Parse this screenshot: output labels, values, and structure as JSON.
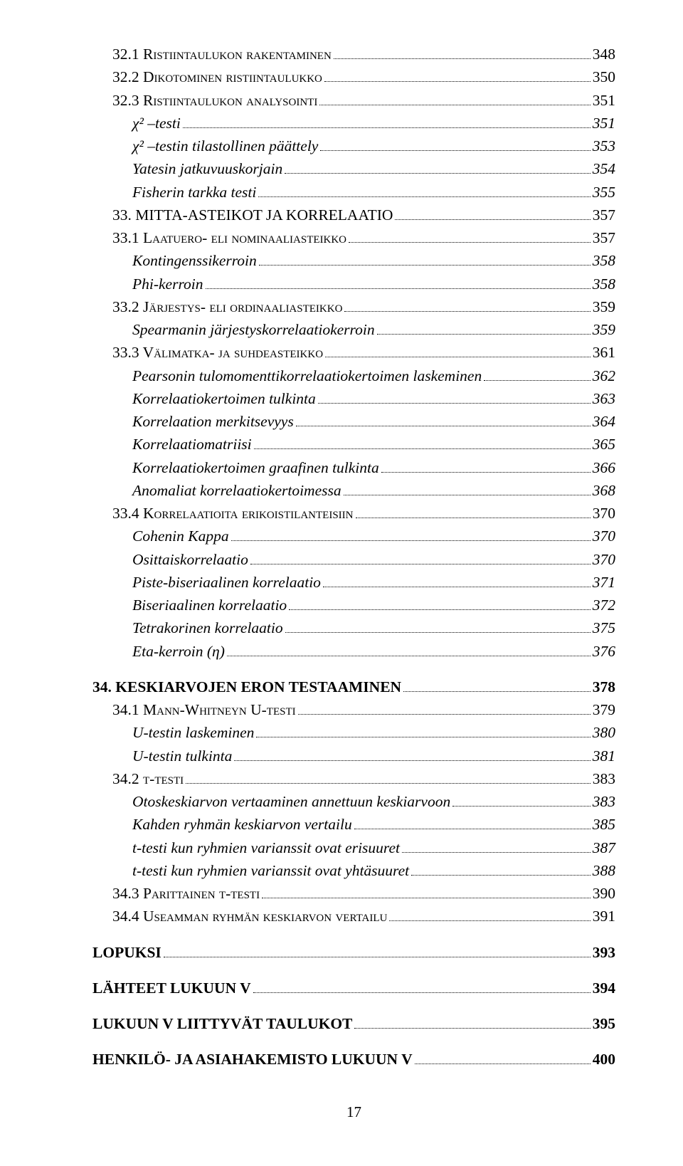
{
  "page_number": "17",
  "colors": {
    "text": "#000000",
    "background": "#ffffff",
    "leader": "#000000"
  },
  "fonts": {
    "family": "Times New Roman",
    "base_size_pt": 16,
    "heading_weight": "bold",
    "level2_style": "italic",
    "smallcaps_level1": true
  },
  "entries": [
    {
      "level": 1,
      "label": "32.1 Ristiintaulukon rakentaminen",
      "page": "348",
      "smallcaps": true
    },
    {
      "level": 1,
      "label": "32.2 Dikotominen ristiintaulukko",
      "page": "350",
      "smallcaps": true
    },
    {
      "level": 1,
      "label": "32.3 Ristiintaulukon analysointi",
      "page": "351",
      "smallcaps": true
    },
    {
      "level": 2,
      "label": "χ² –testi",
      "page": "351"
    },
    {
      "level": 2,
      "label": "χ² –testin tilastollinen päättely",
      "page": "353"
    },
    {
      "level": 2,
      "label": "Yatesin jatkuvuuskorjain",
      "page": "354"
    },
    {
      "level": 2,
      "label": "Fisherin tarkka testi",
      "page": "355"
    },
    {
      "level": 1,
      "label": "33. MITTA-ASTEIKOT JA KORRELAATIO",
      "page": "357"
    },
    {
      "level": 1,
      "label": "33.1 Laatuero- eli nominaaliasteikko",
      "page": "357",
      "smallcaps": true
    },
    {
      "level": 2,
      "label": "Kontingenssikerroin",
      "page": "358"
    },
    {
      "level": 2,
      "label": "Phi-kerroin",
      "page": "358"
    },
    {
      "level": 1,
      "label": "33.2 Järjestys- eli ordinaaliasteikko",
      "page": "359",
      "smallcaps": true
    },
    {
      "level": 2,
      "label": "Spearmanin järjestyskorrelaatiokerroin",
      "page": "359"
    },
    {
      "level": 1,
      "label": "33.3 Välimatka- ja suhdeasteikko",
      "page": "361",
      "smallcaps": true
    },
    {
      "level": 2,
      "label": "Pearsonin tulomomenttikorrelaatiokertoimen laskeminen",
      "page": "362"
    },
    {
      "level": 2,
      "label": "Korrelaatiokertoimen tulkinta",
      "page": "363"
    },
    {
      "level": 2,
      "label": "Korrelaation merkitsevyys",
      "page": "364"
    },
    {
      "level": 2,
      "label": "Korrelaatiomatriisi",
      "page": "365"
    },
    {
      "level": 2,
      "label": "Korrelaatiokertoimen graafinen tulkinta",
      "page": "366"
    },
    {
      "level": 2,
      "label": "Anomaliat korrelaatiokertoimessa",
      "page": "368"
    },
    {
      "level": 1,
      "label": "33.4 Korrelaatioita erikoistilanteisiin",
      "page": "370",
      "smallcaps": true
    },
    {
      "level": 2,
      "label": "Cohenin Kappa",
      "page": "370"
    },
    {
      "level": 2,
      "label": "Osittaiskorrelaatio",
      "page": "370"
    },
    {
      "level": 2,
      "label": "Piste-biseriaalinen korrelaatio",
      "page": "371"
    },
    {
      "level": 2,
      "label": "Biseriaalinen korrelaatio",
      "page": "372"
    },
    {
      "level": 2,
      "label": "Tetrakorinen korrelaatio",
      "page": "375"
    },
    {
      "level": 2,
      "label": "Eta-kerroin (η)",
      "page": "376"
    },
    {
      "level": 0,
      "label": "34. KESKIARVOJEN ERON TESTAAMINEN",
      "page": "378",
      "gap": true
    },
    {
      "level": 1,
      "label": "34.1 Mann-Whitneyn U-testi",
      "page": "379",
      "smallcaps": true
    },
    {
      "level": 2,
      "label": "U-testin laskeminen",
      "page": "380"
    },
    {
      "level": 2,
      "label": "U-testin tulkinta",
      "page": "381"
    },
    {
      "level": 1,
      "label": "34.2 t-testi",
      "page": "383",
      "smallcaps": true
    },
    {
      "level": 2,
      "label": "Otoskeskiarvon vertaaminen annettuun keskiarvoon",
      "page": "383"
    },
    {
      "level": 2,
      "label": "Kahden ryhmän keskiarvon vertailu",
      "page": "385"
    },
    {
      "level": 2,
      "label": "t-testi kun ryhmien varianssit ovat erisuuret",
      "page": "387"
    },
    {
      "level": 2,
      "label": "t-testi kun ryhmien varianssit ovat yhtäsuuret",
      "page": "388"
    },
    {
      "level": 1,
      "label": "34.3 Parittainen t-testi",
      "page": "390",
      "smallcaps": true
    },
    {
      "level": 1,
      "label": "34.4 Useamman ryhmän keskiarvon vertailu",
      "page": "391",
      "smallcaps": true
    },
    {
      "level": 0,
      "label": "LOPUKSI",
      "page": "393",
      "gap": true
    },
    {
      "level": 0,
      "label": "LÄHTEET LUKUUN V",
      "page": "394",
      "gap": true
    },
    {
      "level": 0,
      "label": "LUKUUN V LIITTYVÄT TAULUKOT",
      "page": "395",
      "gap": true
    },
    {
      "level": 0,
      "label": "HENKILÖ- JA ASIAHAKEMISTO LUKUUN V",
      "page": "400",
      "gap": true
    }
  ]
}
